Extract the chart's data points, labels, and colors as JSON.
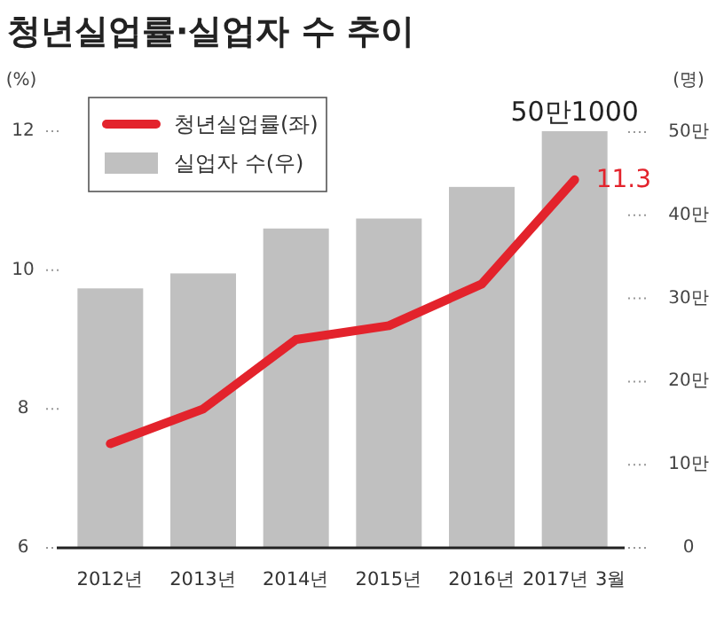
{
  "chart_data": {
    "type": "bar",
    "title": "청년실업률·실업자 수 추이",
    "ylabel": "(%)",
    "y2label": "(명)",
    "categories": [
      "2012년",
      "2013년",
      "2014년",
      "2015년",
      "2016년",
      "2017년 3월"
    ],
    "series": [
      {
        "name": "실업자 수(우)",
        "axis": "y2",
        "color": "#c0c0c0",
        "values": [
          31.2,
          33.0,
          38.4,
          39.6,
          43.4,
          50.1
        ],
        "value_labels": [
          null,
          null,
          null,
          null,
          null,
          "50만1000"
        ]
      },
      {
        "name": "청년실업률(좌)",
        "type": "line",
        "axis": "y",
        "color": "#e3232c",
        "values": [
          7.5,
          8.0,
          9.0,
          9.2,
          9.8,
          11.3
        ],
        "value_labels": [
          null,
          null,
          null,
          null,
          null,
          "11.3"
        ]
      }
    ],
    "ylim": [
      6,
      12
    ],
    "yticks": [
      6,
      8,
      10,
      12
    ],
    "y2lim": [
      0,
      50.1
    ],
    "y2ticks": [
      0,
      {
        "value": 10,
        "label": "10만"
      },
      {
        "value": 20,
        "label": "20만"
      },
      {
        "value": 30,
        "label": "30만"
      },
      {
        "value": 40,
        "label": "40만"
      },
      {
        "value": 50,
        "label": "50만"
      }
    ],
    "legend": "top left",
    "marker": "none",
    "line_style": "solid"
  }
}
